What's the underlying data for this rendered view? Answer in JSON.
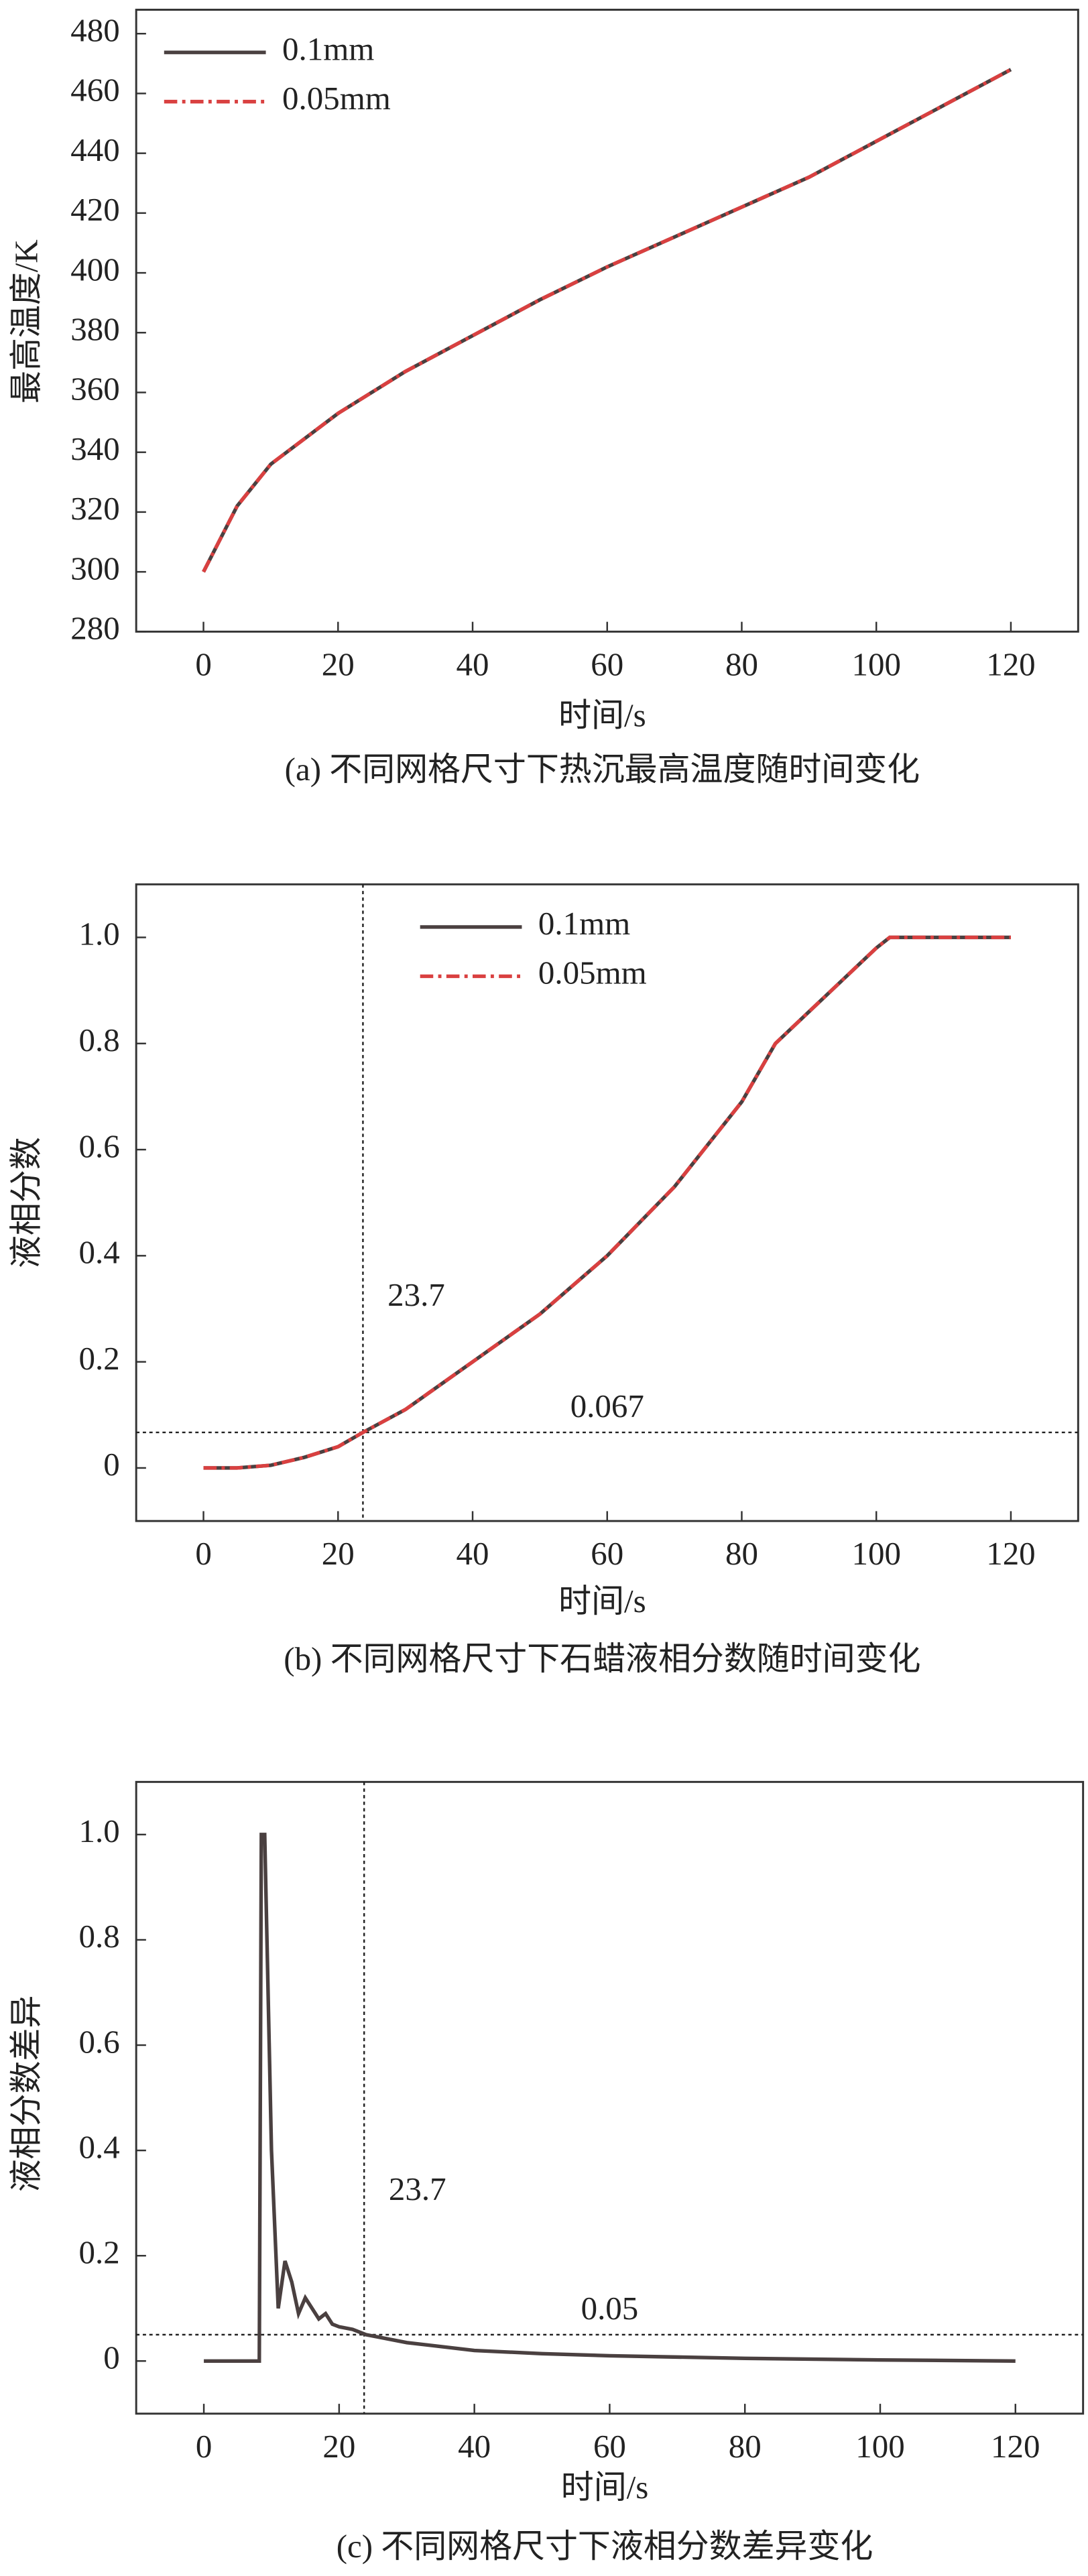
{
  "chart_data": [
    {
      "type": "line",
      "xlabel": "时间/s",
      "ylabel": "最高温度/K",
      "caption": "(a) 不同网格尺寸下热沉最高温度随时间变化",
      "x": [
        0,
        5,
        10,
        20,
        30,
        40,
        50,
        60,
        70,
        80,
        90,
        100,
        110,
        120
      ],
      "series": [
        {
          "name": "0.1mm",
          "color": "#4a4040",
          "dash": false,
          "values": [
            300,
            322,
            336,
            353,
            367,
            379,
            391,
            402,
            412,
            422,
            432,
            444,
            456,
            468
          ]
        },
        {
          "name": "0.05mm",
          "color": "#d94040",
          "dash": true,
          "values": [
            300,
            322,
            336,
            353,
            367,
            379,
            391,
            402,
            412,
            422,
            432,
            444,
            456,
            468
          ]
        }
      ],
      "xlim": [
        -10,
        130
      ],
      "xticks": [
        0,
        20,
        40,
        60,
        80,
        100,
        120
      ],
      "ylim": [
        280,
        488
      ],
      "yticks": [
        280,
        300,
        320,
        340,
        360,
        380,
        400,
        420,
        440,
        460,
        480
      ],
      "legend": "upper left"
    },
    {
      "type": "line",
      "xlabel": "时间/s",
      "ylabel": "液相分数",
      "caption": "(b) 不同网格尺寸下石蜡液相分数随时间变化",
      "x": [
        0,
        5,
        10,
        15,
        20,
        23.7,
        30,
        40,
        50,
        60,
        70,
        80,
        85,
        90,
        95,
        100,
        102,
        110,
        120
      ],
      "series": [
        {
          "name": "0.1mm",
          "color": "#4a4040",
          "dash": false,
          "values": [
            0,
            0,
            0.005,
            0.02,
            0.04,
            0.067,
            0.11,
            0.2,
            0.29,
            0.4,
            0.53,
            0.69,
            0.8,
            0.86,
            0.92,
            0.98,
            1,
            1,
            1
          ]
        },
        {
          "name": "0.05mm",
          "color": "#d94040",
          "dash": true,
          "values": [
            0,
            0,
            0.005,
            0.02,
            0.04,
            0.067,
            0.11,
            0.2,
            0.29,
            0.4,
            0.53,
            0.69,
            0.8,
            0.86,
            0.92,
            0.98,
            1,
            1,
            1
          ]
        }
      ],
      "xlim": [
        -10,
        130
      ],
      "xticks": [
        0,
        20,
        40,
        60,
        80,
        100,
        120
      ],
      "ylim": [
        -0.1,
        1.1
      ],
      "yticks": [
        0,
        0.2,
        0.4,
        0.6,
        0.8,
        {
          "value": 1,
          "label": "1.0"
        }
      ],
      "legend": "upper center",
      "vline": 23.7,
      "hline": 0.067
    },
    {
      "type": "line",
      "xlabel": "时间/s",
      "ylabel": "液相分数差异",
      "caption": "(c) 不同网格尺寸下液相分数差异变化",
      "x": [
        0,
        8.2,
        8.5,
        9,
        10,
        11,
        12,
        13,
        14,
        15,
        16,
        17,
        18,
        19,
        20,
        22,
        24,
        30,
        40,
        50,
        60,
        80,
        100,
        120
      ],
      "series": [
        {
          "color": "#4a4040",
          "dash": false,
          "values": [
            0,
            0,
            1,
            1,
            0.4,
            0.1,
            0.19,
            0.15,
            0.09,
            0.12,
            0.1,
            0.08,
            0.09,
            0.07,
            0.065,
            0.06,
            0.05,
            0.035,
            0.02,
            0.014,
            0.01,
            0.005,
            0.002,
            0
          ]
        }
      ],
      "xlim": [
        -10,
        130
      ],
      "xticks": [
        0,
        20,
        40,
        60,
        80,
        100,
        120
      ],
      "ylim": [
        -0.1,
        1.1
      ],
      "yticks": [
        0,
        0.2,
        0.4,
        0.6,
        0.8,
        {
          "value": 1,
          "label": "1.0"
        }
      ],
      "vline": 23.7,
      "hline": 0.05
    }
  ]
}
